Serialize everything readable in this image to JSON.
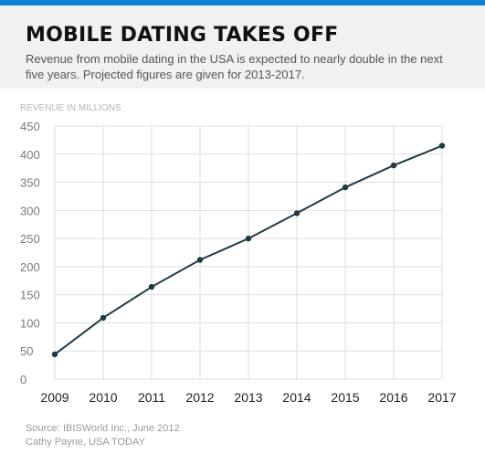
{
  "header": {
    "title": "MOBILE DATING TAKES OFF",
    "subtitle": "Revenue from mobile dating in the USA is expected to nearly double in the next five years. Projected figures are given for 2013-2017."
  },
  "footer": {
    "source": "Source: IBISWorld Inc., June 2012",
    "credit": "Cathy Payne, USA TODAY"
  },
  "colors": {
    "accent_bar": "#0a7fd6",
    "line": "#1f3a47",
    "grid": "#dddddd",
    "axis_text": "#555555"
  },
  "chart_data": {
    "type": "line",
    "title": "MOBILE DATING TAKES OFF",
    "ylabel": "REVENUE IN MILLIONS",
    "xlabel": "",
    "categories": [
      "2009",
      "2010",
      "2011",
      "2012",
      "2013",
      "2014",
      "2015",
      "2016",
      "2017"
    ],
    "values": [
      44,
      109,
      164,
      212,
      250,
      295,
      341,
      380,
      415
    ],
    "ylim": [
      0,
      450
    ],
    "yticks": [
      0,
      50,
      100,
      150,
      200,
      250,
      300,
      350,
      400,
      450
    ],
    "grid": true,
    "legend": "none"
  }
}
